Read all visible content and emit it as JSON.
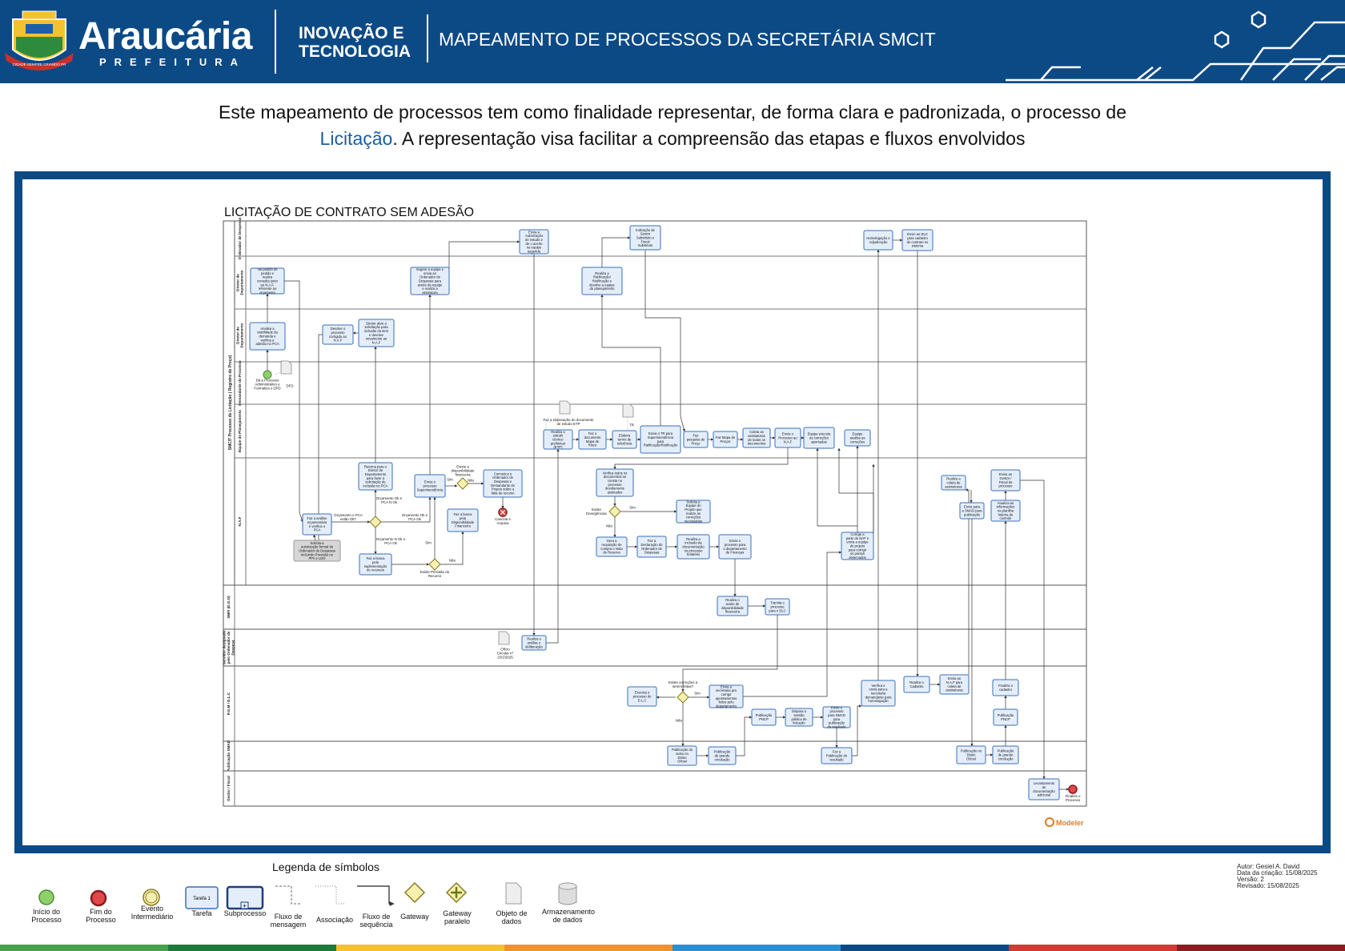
{
  "header": {
    "brand_name": "Araucária",
    "brand_sub": "PREFEITURA",
    "crest_motto": "CIDADE SEMPRE CRIANDO PR",
    "area_line1": "INOVAÇÃO E",
    "area_line2": "TECNOLOGIA",
    "title": "MAPEAMENTO DE PROCESSOS DA SECRETÁRIA SMCIT"
  },
  "intro": {
    "line1": "Este mapeamento de processos tem como finalidade representar, de forma clara e padronizada, o processo de",
    "highlight": "Licitação",
    "line2_rest": ". A representação visa facilitar a compreensão das etapas e fluxos envolvidos"
  },
  "diagram": {
    "title": "LICITAÇÃO DE CONTRATO SEM ADESÃO",
    "pool_label": "SMCIT Processo de Licitação ( Registro de Preço)",
    "lanes": [
      "Ordenador de Despesas",
      "Diretor de Departamento",
      "Diretor de Departamento",
      "Demandante do Processo",
      "Equipe de Planejamento",
      "N.A.F",
      "SMFI (D.G.O)",
      "Servidor designado pelo Ordenador de Despesa",
      "P.G.M / D.L.C",
      "Publicação SMAD",
      "Gestor / Fiscal"
    ],
    "tasks": {
      "t1": "Vai pedido de pedido e realiza consulta junto ao N.A.F, referente ao orçamento",
      "t2": "Analisa a viabilidade da demanda e verifica a adesão no PCA",
      "t3": "Devolve o processo corrigido ao N.A.F",
      "t4": "Direter abre a solicitação para inclusão do item e devolve novamente ao N.A.F",
      "t5": "Envia a Autorização de estudo e de o acerto na equipe sugerida",
      "t6": "Sugere a equipe e envia ao Ordenador de Despesas para aceite da equipe e realiza a assinatura",
      "t7": "Indicação de Gestor Substituto e Fiscal Substituto",
      "t8": "Realiza a Ratificação/ Retificação e devolve a equipe do planejamento",
      "t9": "Homologação e Adjudicação",
      "t10": "Envio ao DLC para cadastro do contrato no sistema",
      "t11": "Realiza o estudo técnico preliminar (ETP)",
      "t12": "Faz o documento Mapa de Risco",
      "t13": "Elabora termo de referência",
      "t14": "Envia o TR para Superintendência para Ratificação/Retificação",
      "t15": "Faz pesquisa de Preço",
      "t16": "Faz Mapa de Preços",
      "t17": "Coleta as assinaturas de todos os documentos",
      "t18": "Envia o Processo ao N.A.F",
      "t19": "Equipe executa as correções apontadas",
      "t20": "Equipe analisa as correções",
      "t21": "Retorna para o Diretor de Departamento para fazer a solicitação de inclusão no PCA",
      "t22": "Envia o processo Superintendência",
      "t23": "Comunica o Ordenador de Despesas e Demandante do Projeto sobre a falta de recurso",
      "t24": "Faz a busca pela Disponibilidade Financeira",
      "t25": "Faz a análise orçamentária e verifica o PCA",
      "t26": "Solicita a autorização formal do Ordenador de Despesas incluindo Previsão no PPA e LDO",
      "t27": "Faz a busca pela suplementação de recursos",
      "t28": "Verifica todos os documentos se consta no processo devidamente assinados",
      "t29": "Solicita a Equipe do Projeto que realize as correções necessárias",
      "t30": "Gera a requisição de compra e Nota de Reserva",
      "t31": "Faz a Declaração do Ordenador de Despesas",
      "t32": "Realiza a inclusão da documentação no processo licitatório",
      "t33": "Envia o processo para o departamento de Finanças",
      "t34": "Corrige a parte do NAF e envia a equipe do projeto para corrigir os pontos observados",
      "t35": "Realiza a coleta de assinaturas",
      "t36": "Envia para a SMAD para publicação",
      "t37": "Envia ao Gestor / Fiscal do processo",
      "t38": "Atualiza as informações na planilha interna de controle",
      "t39": "Realiza o aceite de disponibilidade financeira",
      "t40": "Tramita o processo para o DLC",
      "t41": "Realiza a análise e deliberação",
      "t42": "Executa o processo do D.L.C",
      "t43": "Envia a secretaria pra corrigir apontamentos feitos pelo departamento",
      "t44": "Publicação PNCP",
      "t45": "Dispara a sessão pública de licitação",
      "t46": "Envio o processo para SMAD para publicação do resultado",
      "t47": "Verifica e envia para a secretaria demandante para homologação",
      "t48": "Realiza o Cadastro",
      "t49": "Envia ao N.A.F para coleta de assinaturas",
      "t50": "Finaliza o cadastro",
      "t51": "Publicação PNCP",
      "t52": "Publicação do aviso no Diário Oficial",
      "t53": "Publicação de grande circulação",
      "t54": "Faz a Publicação do resultado",
      "t55": "Publicação no Diário Oficial",
      "t56": "Publicação de grande circulação",
      "t57": "Levantamento de documentação adicional"
    },
    "labels": {
      "start": "Dá a Processo Administrativo e Formaliza o DFD",
      "dfd": "DFD",
      "etp_doc": "Faz a elaboração do documento de estudo ETP",
      "tr_doc": "TR",
      "cancel": "Cancela e Arquiva",
      "oficio": "Ofício Circular nº 23/1/2025",
      "end": "Finaliza o Processo",
      "q_budget": "Orçamento e PCA estão Ok?",
      "b_no_pca": "Orçamento Ok e PCA N Ok",
      "b_all_ok": "Orçamento Ok e PCA Ok",
      "b_no_budget": "Orçamento N Ok e PCA Ok",
      "q_resource": "Existe Previsão do Recurso",
      "q_disp": "Existe a disponibilidade financeira",
      "q_div": "Existe Divergências",
      "q_corr": "Existe correções a serem feitas?",
      "sim": "Sim",
      "nao": "Não",
      "watermark": "Modeler"
    }
  },
  "legend": {
    "title": "Legenda de símbolos",
    "items": [
      "Início do Processo",
      "Fim do Processo",
      "Evento Intermediário",
      "Tarefa",
      "Subprocesso",
      "Fluxo de mensagem",
      "Associação",
      "Fluxo de sequência",
      "Gateway",
      "Gateway paralelo",
      "Objeto de dados",
      "Armazenamento de dados"
    ],
    "task_sample": "Tarefa 1"
  },
  "credits": {
    "author": "Autor: Gesiel A. David",
    "created": "Data da criação: 15/08/2025",
    "version": "Versão: 2",
    "revised": "Revisado: 15/08/2025"
  },
  "colors": {
    "brand_blue": "#0c4a86",
    "task_fill": "#e4eefb",
    "task_stroke": "#3a6fb8",
    "gateway_fill": "#f6f0b0",
    "start_green": "#8ed16b",
    "end_red": "#e0494b"
  }
}
